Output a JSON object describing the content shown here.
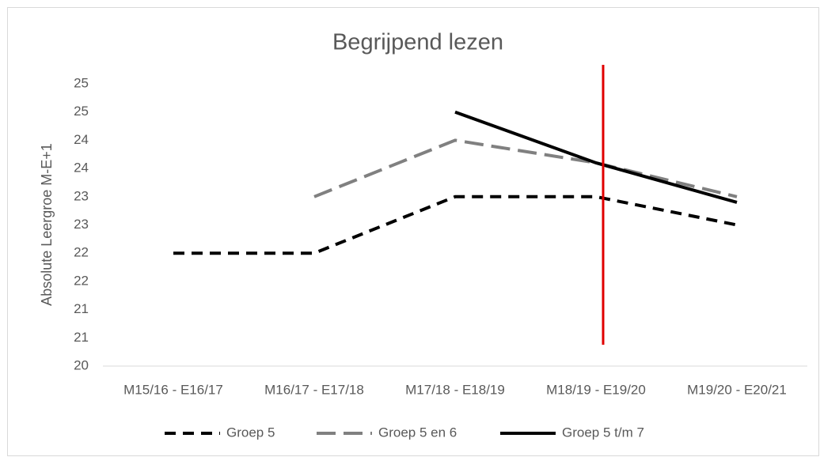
{
  "chart_data": {
    "type": "line",
    "title": "Begrijpend lezen",
    "y_label": "Absolute Leergroe M-E+1",
    "categories": [
      "M15/16 - E16/17",
      "M16/17 - E17/18",
      "M17/18 - E18/19",
      "M18/19 - E19/20",
      "M19/20 - E20/21"
    ],
    "series": [
      {
        "name": "Groep 5",
        "color": "#000000",
        "dash": "14,9",
        "values": [
          22,
          22,
          23,
          23,
          22.5
        ]
      },
      {
        "name": "Groep 5 en 6",
        "color": "#808080",
        "dash": "24,10",
        "values": [
          null,
          23,
          24,
          23.6,
          23
        ]
      },
      {
        "name": "Groep 5 t/m 7",
        "color": "#000000",
        "dash": "none",
        "values": [
          null,
          null,
          24.5,
          23.6,
          22.9
        ]
      }
    ],
    "ylim": [
      20,
      25
    ],
    "yticks": [
      20,
      {
        "value": 20.5,
        "label": "21"
      },
      21,
      {
        "value": 21.5,
        "label": "22"
      },
      22,
      {
        "value": 22.5,
        "label": "23"
      },
      23,
      {
        "value": 23.5,
        "label": "24"
      },
      24,
      {
        "value": 24.5,
        "label": "25"
      },
      25
    ],
    "legend": "bottom"
  }
}
